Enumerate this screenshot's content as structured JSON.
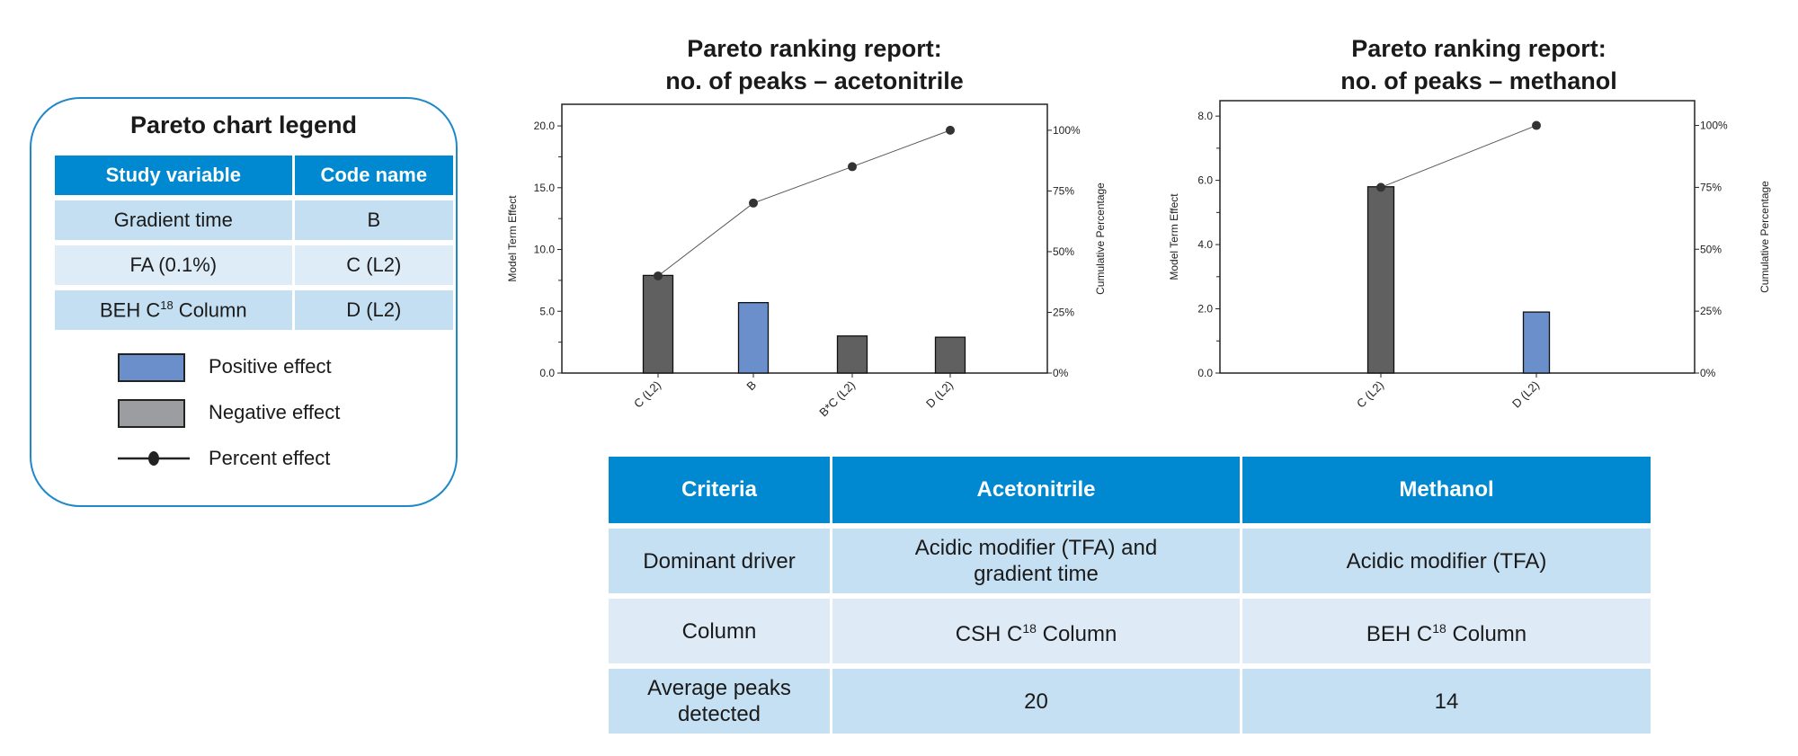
{
  "legend": {
    "title": "Pareto chart legend",
    "headers": [
      "Study variable",
      "Code name"
    ],
    "rows": [
      {
        "variable": "Gradient time",
        "code": "B"
      },
      {
        "variable": "FA (0.1%)",
        "code": "C (L2)"
      },
      {
        "variable_pre": "BEH C",
        "variable_sup": "18",
        "variable_post": " Column",
        "code": "D (L2)"
      }
    ],
    "items": [
      {
        "label": "Positive effect",
        "color": "#6a8fcb"
      },
      {
        "label": "Negative effect",
        "color": "#9c9da0"
      },
      {
        "label": "Percent effect",
        "color": "#222222"
      }
    ]
  },
  "chart_data": [
    {
      "type": "bar",
      "title": "Pareto ranking report:",
      "subtitle": "no. of peaks – acetonitrile",
      "ylabel": "Model Term Effect",
      "y2label": "Cumulative Percentage",
      "categories": [
        "C (L2)",
        "B",
        "B*C (L2)",
        "D (L2)"
      ],
      "values": [
        7.9,
        5.7,
        3.0,
        2.9
      ],
      "effect": [
        "negative",
        "positive",
        "negative",
        "negative"
      ],
      "cumulative_percent": [
        40,
        70,
        85,
        100
      ],
      "ylim": [
        0,
        21.75
      ],
      "yticks": [
        "0.0",
        "5.0",
        "10.0",
        "15.0",
        "20.0"
      ],
      "y2lim": [
        0,
        110.7
      ],
      "y2ticks": [
        "0%",
        "25%",
        "50%",
        "75%",
        "100%"
      ],
      "colors": {
        "positive": "#6a8fcb",
        "negative": "#606060",
        "line": "#333333"
      }
    },
    {
      "type": "bar",
      "title": "Pareto ranking report:",
      "subtitle": "no. of peaks – methanol",
      "ylabel": "Model Term Effect",
      "y2label": "Cumulative Percentage",
      "categories": [
        "C (L2)",
        "D (L2)"
      ],
      "values": [
        5.8,
        1.9
      ],
      "effect": [
        "negative",
        "positive"
      ],
      "cumulative_percent": [
        75,
        100
      ],
      "ylim": [
        0,
        8.48
      ],
      "yticks": [
        "0.0",
        "2.0",
        "4.0",
        "6.0",
        "8.0"
      ],
      "y2lim": [
        0,
        110
      ],
      "y2ticks": [
        "0%",
        "25%",
        "50%",
        "75%",
        "100%"
      ],
      "colors": {
        "positive": "#6a8fcb",
        "negative": "#606060",
        "line": "#333333"
      }
    }
  ],
  "table": {
    "headers": [
      "Criteria",
      "Acetonitrile",
      "Methanol"
    ],
    "rows": [
      {
        "criteria": "Dominant driver",
        "acetonitrile": "Acidic modifier (TFA) and gradient time",
        "methanol": "Acidic modifier (TFA)"
      },
      {
        "criteria": "Column",
        "acetonitrile_pre": "CSH C",
        "acetonitrile_sup": "18",
        "acetonitrile_post": " Column",
        "methanol_pre": "BEH C",
        "methanol_sup": "18",
        "methanol_post": " Column"
      },
      {
        "criteria": "Average peaks detected",
        "acetonitrile": "20",
        "methanol": "14"
      }
    ]
  }
}
